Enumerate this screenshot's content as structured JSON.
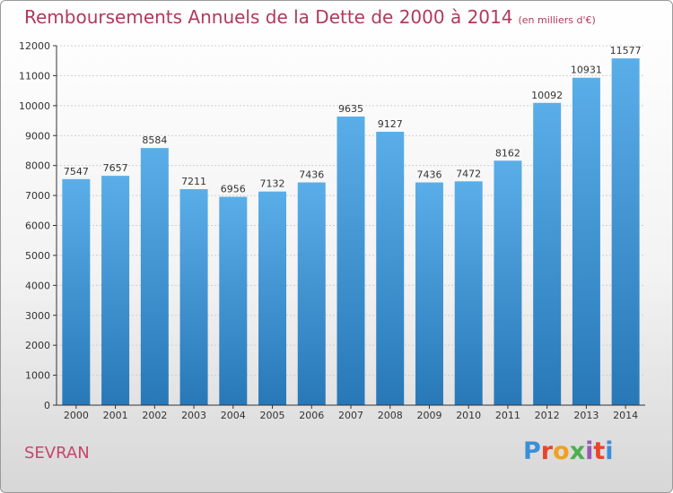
{
  "title": "Remboursements Annuels de la Dette de 2000 à 2014",
  "unit": "(en milliers d'€)",
  "city": "SEVRAN",
  "logo": {
    "text": "Proxiti",
    "colors": [
      "#3a8fd8",
      "#e8452c",
      "#f0a020",
      "#4caf50",
      "#9b59b6",
      "#e8452c",
      "#3a8fd8"
    ]
  },
  "colors": {
    "bar_top": "#5aaee8",
    "bar_bottom": "#2878b8",
    "grid": "#cfcfcf",
    "title": "#b03a5b"
  },
  "chart_data": {
    "type": "bar",
    "title": "Remboursements Annuels de la Dette de 2000 à 2014",
    "xlabel": "",
    "ylabel": "",
    "categories": [
      "2000",
      "2001",
      "2002",
      "2003",
      "2004",
      "2005",
      "2006",
      "2007",
      "2008",
      "2009",
      "2010",
      "2011",
      "2012",
      "2013",
      "2014"
    ],
    "values": [
      7547,
      7657,
      8584,
      7211,
      6956,
      7132,
      7436,
      9635,
      9127,
      7436,
      7472,
      8162,
      10092,
      10931,
      11577
    ],
    "ylim": [
      0,
      12000
    ],
    "yticks": [
      0,
      1000,
      2000,
      3000,
      4000,
      5000,
      6000,
      7000,
      8000,
      9000,
      10000,
      11000,
      12000
    ],
    "grid": true
  }
}
